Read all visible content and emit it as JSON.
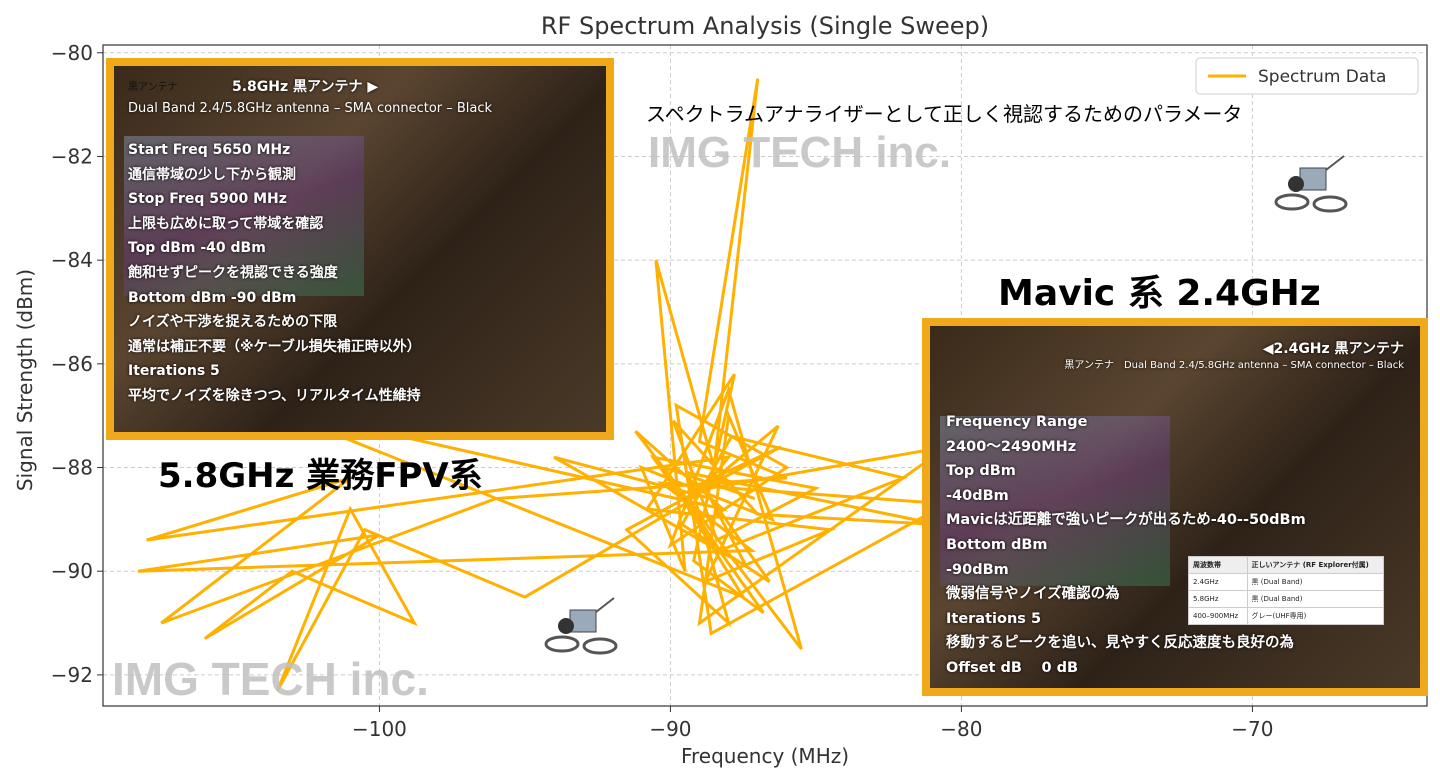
{
  "chart_data": {
    "type": "line",
    "title": "RF Spectrum Analysis (Single Sweep)",
    "xlabel": "Frequency (MHz)",
    "ylabel": "Signal Strength (dBm)",
    "xlim": [
      -109.5,
      -64
    ],
    "ylim": [
      -92.6,
      -79.85
    ],
    "xticks": [
      -100,
      -90,
      -80,
      -70
    ],
    "yticks": [
      -80,
      -82,
      -84,
      -86,
      -88,
      -90,
      -92
    ],
    "xtick_labels": [
      "−100",
      "−90",
      "−80",
      "−70"
    ],
    "ytick_labels": [
      "−80",
      "−82",
      "−84",
      "−86",
      "−88",
      "−90",
      "−92"
    ],
    "grid": true,
    "legend_placement": "top-right",
    "series": [
      {
        "name": "Spectrum Data",
        "color": "#ffb000",
        "points": [
          [
            -89,
            -88.5
          ],
          [
            -88,
            -87.8
          ],
          [
            -108,
            -89.4
          ],
          [
            -101,
            -88.2
          ],
          [
            -107.5,
            -91
          ],
          [
            -96,
            -88.6
          ],
          [
            -86,
            -88.2
          ],
          [
            -89,
            -87.5
          ],
          [
            -87,
            -80.5
          ],
          [
            -88.5,
            -88
          ],
          [
            -90.5,
            -84
          ],
          [
            -89.5,
            -90
          ],
          [
            -91,
            -88
          ],
          [
            -86.5,
            -89
          ],
          [
            -88,
            -87
          ],
          [
            -89,
            -91
          ],
          [
            -80.5,
            -87.6
          ],
          [
            -89.7,
            -88.5
          ],
          [
            -87.5,
            -90.5
          ],
          [
            -104,
            -86.8
          ],
          [
            -88.2,
            -88.8
          ],
          [
            -91.2,
            -87.3
          ],
          [
            -85.5,
            -91.5
          ],
          [
            -88,
            -86.5
          ],
          [
            -90,
            -89.5
          ],
          [
            -86,
            -88
          ],
          [
            -89.8,
            -86.8
          ],
          [
            -88.6,
            -91.2
          ],
          [
            -80.5,
            -88.7
          ],
          [
            -90.3,
            -88.3
          ],
          [
            -87.2,
            -89.6
          ],
          [
            -108.3,
            -90
          ],
          [
            -100,
            -89.3
          ],
          [
            -106,
            -91.3
          ],
          [
            -103,
            -90
          ],
          [
            -98.8,
            -91
          ],
          [
            -101,
            -88.8
          ],
          [
            -103.5,
            -92.3
          ],
          [
            -100.5,
            -89.2
          ],
          [
            -95,
            -90.5
          ],
          [
            -89.5,
            -88.7
          ],
          [
            -86.3,
            -87.2
          ],
          [
            -88.8,
            -90.2
          ],
          [
            -84.5,
            -89.2
          ],
          [
            -90.8,
            -88.8
          ],
          [
            -87.8,
            -86.2
          ],
          [
            -89.2,
            -89.8
          ],
          [
            -86.8,
            -90.8
          ],
          [
            -90.6,
            -87.8
          ],
          [
            -85,
            -88.4
          ],
          [
            -88.4,
            -89.4
          ],
          [
            -89.9,
            -87.1
          ],
          [
            -87,
            -88.9
          ],
          [
            -80.8,
            -89.1
          ],
          [
            -89.4,
            -88.1
          ],
          [
            -88,
            -91
          ],
          [
            -91.5,
            -89.2
          ],
          [
            -86.2,
            -87.6
          ],
          [
            -88.9,
            -88.3
          ],
          [
            -87.4,
            -89.9
          ],
          [
            -94,
            -87.8
          ],
          [
            -88.6,
            -88.6
          ],
          [
            -86.6,
            -90.2
          ],
          [
            -89.6,
            -89.1
          ],
          [
            -87.9,
            -87.4
          ],
          [
            -82,
            -88.2
          ],
          [
            -88.3,
            -89.6
          ],
          [
            -90.2,
            -88
          ],
          [
            -87.1,
            -88.6
          ]
        ]
      }
    ]
  },
  "overlays": {
    "left_panel": {
      "tag": "黒アンテナ",
      "heading": "5.8GHz  黒アンテナ  ▶",
      "subheading": "Dual Band 2.4/5.8GHz antenna – SMA connector – Black",
      "lines": [
        "Start Freq  5650 MHz",
        "通信帯域の少し下から観測",
        "Stop Freq  5900 MHz",
        "上限も広めに取って帯域を確認",
        "Top dBm -40 dBm",
        "飽和せずピークを視認できる強度",
        "Bottom dBm -90 dBm",
        "ノイズや干渉を捉えるための下限",
        "通常は補正不要（※ケーブル損失補正時以外）",
        "Iterations  5",
        "平均でノイズを除きつつ、リアルタイム性維持"
      ]
    },
    "right_panel": {
      "heading": "◀2.4GHz 黒アンテナ",
      "subheading": "黒アンテナ　Dual Band 2.4/5.8GHz antenna – SMA connector – Black",
      "lines": [
        "Frequency Range",
        "2400～2490MHz",
        "Top dBm",
        "-40dBm",
        "Mavicは近距離で強いピークが出るため-40--50dBm",
        "Bottom dBm",
        "-90dBm",
        "微弱信号やノイズ確認の為",
        "Iterations 5",
        "移動するピークを追い、見やすく反応速度も良好の為",
        "Offset dB　 0 dB"
      ],
      "table": {
        "headers": [
          "周波数帯",
          "正しいアンテナ (RF Explorer付属)"
        ],
        "rows": [
          [
            "2.4GHz",
            "黒 (Dual Band)"
          ],
          [
            "5.8GHz",
            "黒 (Dual Band)"
          ],
          [
            "400–900MHz",
            "グレー(UHF専用)"
          ]
        ]
      }
    },
    "caption_top": "スペクトラムアナライザーとして正しく視認するためのパラメータ",
    "label_mavic": "Mavic 系 2.4GHz",
    "label_fpv": "5.8GHz 業務FPV系",
    "watermark": "IMG TECH inc."
  }
}
